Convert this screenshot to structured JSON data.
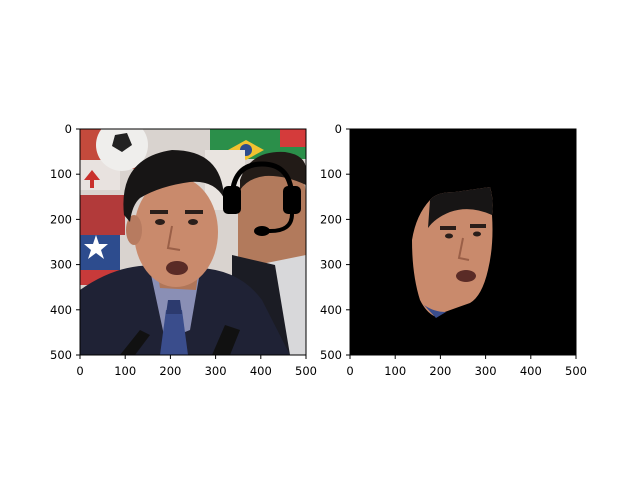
{
  "panels": [
    {
      "id": "left",
      "image": "photo of a man in a dark suit and blue tie speaking at a press conference, with a cartoon headset drawn over his head; flags and a soccer ball in the background",
      "icon": "headset-icon",
      "xticks": [
        "0",
        "100",
        "200",
        "300",
        "400",
        "500"
      ],
      "yticks": [
        "0",
        "100",
        "200",
        "300",
        "400",
        "500"
      ]
    },
    {
      "id": "right",
      "image": "segmented face of the man on a black background",
      "xticks": [
        "0",
        "100",
        "200",
        "300",
        "400",
        "500"
      ],
      "yticks": [
        "0",
        "100",
        "200",
        "300",
        "400",
        "500"
      ]
    }
  ],
  "colors": {
    "background": "#ffffff",
    "axis": "#000000",
    "mask_background": "#000000",
    "suit": "#1f2235",
    "skin": "#c98a6c",
    "hair": "#171515",
    "tie": "#3a4d8c"
  }
}
